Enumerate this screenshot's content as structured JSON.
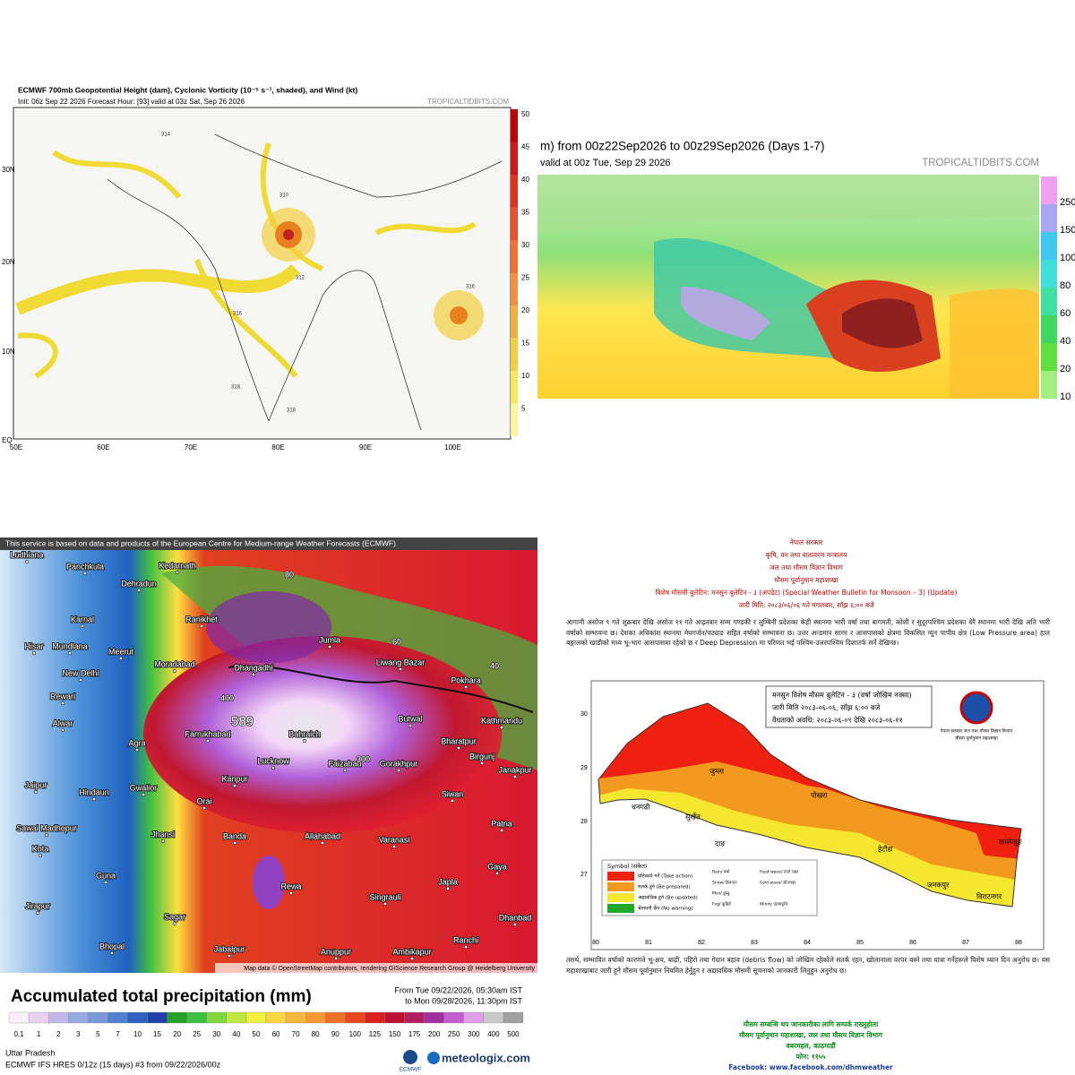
{
  "vorticity_map": {
    "title": "ECMWF 700mb Geopotential Height (dam), Cyclonic Vorticity (10⁻⁵ s⁻¹, shaded), and Wind (kt)",
    "subtitle": "Init: 06z Sep 22 2026   Forecast Hour: [93]   valid at 03z Sat, Sep 26 2026",
    "credit": "TROPICALTIDBITS.COM",
    "colorbar": [
      "50",
      "45",
      "40",
      "35",
      "30",
      "25",
      "20",
      "15",
      "10",
      "5"
    ],
    "lat_labels": [
      "30N",
      "20N",
      "10N",
      "EQ"
    ],
    "lon_labels": [
      "50E",
      "60E",
      "70E",
      "80E",
      "90E",
      "100E"
    ],
    "contour_labels": [
      "314",
      "310",
      "312",
      "316",
      "316",
      "318",
      "318"
    ]
  },
  "precip_map_tt": {
    "title": "m) from 00z22Sep2026 to 00z29Sep2026 (Days 1-7)",
    "subtitle": "valid at 00z Tue, Sep 29 2026",
    "credit": "TROPICALTIDBITS.COM",
    "colorbar": [
      "250",
      "150",
      "100",
      "80",
      "60",
      "40",
      "20",
      "10"
    ]
  },
  "precip_map_meteologix": {
    "header": "This service is based on data and products of the European Centre for Medium-range Weather Forecasts (ECMWF)",
    "cities": [
      "Ludhiana",
      "Panchkula",
      "Kedarnath",
      "Dehradun",
      "Karnal",
      "Ranikhet",
      "Hisar",
      "Mundlana",
      "Meerut",
      "Moradabad",
      "Jumla",
      "New Delhi",
      "Dhangadhi",
      "Liwang Bazar",
      "Pokhara",
      "Kathmandu",
      "Rewari",
      "Butwal",
      "Bahraich",
      "Farrukhabad",
      "Bharatpur",
      "Alwar",
      "Agra",
      "Birgunj",
      "Lucknow",
      "Faizabad",
      "Gorakhpur",
      "Janakpur",
      "Jaipur",
      "Hindaun",
      "Kanpur",
      "Sawai Madhopur",
      "Gwalior",
      "Orai",
      "Siwan",
      "Patna",
      "Jhansi",
      "Banda",
      "Allahabad",
      "Varanasi",
      "Kota",
      "Gaya",
      "Guna",
      "Rewa",
      "Japla",
      "Singrauli",
      "Sagar",
      "Jirapur",
      "Dhanbad",
      "Ranchi",
      "Bhopal",
      "Jabalpur",
      "Anuppur",
      "Ambikapur"
    ],
    "contour_labels": [
      "80",
      "60",
      "40",
      "400",
      "589",
      "300"
    ],
    "attribution": "Map data © OpenStreetMap contributors, rendering GIScience Research Group @ Heidelberg University",
    "legend_title": "Accumulated total precipitation (mm)",
    "period_from": "From Tue 09/22/2026, 05:30am IST",
    "period_to": "to Mon 09/28/2026, 11:30pm IST",
    "scale": [
      "0.1",
      "1",
      "2",
      "3",
      "5",
      "7",
      "10",
      "15",
      "20",
      "25",
      "30",
      "40",
      "50",
      "60",
      "70",
      "80",
      "90",
      "100",
      "125",
      "150",
      "175",
      "200",
      "250",
      "300",
      "400",
      "500"
    ],
    "region": "Uttar Pradesh",
    "model": "ECMWF IFS HRES 0/12z (15 days) #3 from 09/22/2026/00z",
    "ecmwf_logo": "ECMWF",
    "site_logo": "meteologix.com"
  },
  "bulletin": {
    "header": [
      "नेपाल सरकार",
      "कृषि, वन तथा वातावरण मन्त्रालय",
      "जल तथा मौसम विज्ञान विभाग",
      "मौसम पूर्वानुमान महाशाखा",
      "विशेष मौसमी बुलेटिन: मनसुन बुलेटिन - ३ (अपडेट) (Special Weather Bulletin for Monsoon – 3) (Update)",
      "जारी मिति: २०८३/०६/०६ गते मंगलबार, साँझ ६:०० बजे"
    ],
    "intro": "आगामी असोज ९ गते शुक्रबार देखि असोज ११ गते आइतबार सम्म गण्डकी र लुम्बिनी प्रदेशका केही स्थानमा भारी वर्षा तथा बागमती, कोशी र सुदूरपश्चिम प्रदेशका धेरै स्थानमा भारी देखि अति भारी वर्षाको सम्भावना छ। देशका अधिकांश स्थानमा मेघगर्जन/चट्याङ सहित वर्षाको सम्भावना छ। उत्तर अन्डमान सागर र आसपासको क्षेत्रमा विकसित न्यून चापीय क्षेत्र (Low Pressure area) हाल बङ्गालको खाडीको मध्य भू-भाग आसपासमा रहेको छ र Deep Depression मा परिणत भई पश्चिम-उत्तरपश्चिम दिशातर्फ सर्ने देखिन्छ।",
    "map_box": [
      "मनसुन विशेष मौसम बुलेटिन - ३ (वर्षा जोखिम नक्सा)",
      "जारी मिति २०८३-०६-०६, साँझ ६:०० बजे",
      "वैधताको अवधि: २०८३-०६-०९ देखि २०८३-०६-११"
    ],
    "logo_caption": [
      "नेपाल सरकार जल तथा मौसम विज्ञान विभाग",
      "मौसम पूर्वानुमान महाशाखा"
    ],
    "lat_labels": [
      "30",
      "29",
      "28",
      "27"
    ],
    "lon_labels": [
      "80",
      "81",
      "82",
      "83",
      "84",
      "85",
      "86",
      "87",
      "88"
    ],
    "places": [
      "जुम्ला",
      "धनगढी",
      "सुर्खेत",
      "दाङ",
      "पोखरा",
      "हेटौंडा",
      "जनकपुर",
      "विराटनगर",
      "ताप्लेजुङ"
    ],
    "legend_title": "Symbol (संकेत)",
    "legend": [
      "प्रतिकार्य गर्ने (Take action)",
      "सतर्क हुने (Be prepared)",
      "अद्यावधिक हुने (Be updated)",
      "चेतावनी छैन (No warning)"
    ],
    "symbols": [
      "Rain/ वर्षा",
      "Snow/ हिमपात",
      "Mist/ हुस्सु",
      "Fog/ कुहिरो",
      "Heat wave/ तातो लहर",
      "Cold wave/ शीतलहर",
      "Windy (हावाहुरी)"
    ],
    "outro": "तसर्थ, सम्भावित वर्षाको कारणले भू-क्षय, बाढी, पहिरो तथा गेग्रान बहाव (debris flow) को जोखिम रहेकोले सतर्क रहन, खोलानाला वरपर बस्ने तथा यात्रा गर्नेहरूले विशेष ध्यान दिन अनुरोध छ। यस महाशाखाबाट जारी हुने मौसम पूर्वानुमान नियमित हेर्नुहुन र अद्यावधिक मौसमी सूचनाको जानकारी लिनुहुन अनुरोध छ।",
    "footer": [
      "मौसम सम्बन्धि थप जानकारीका लागि सम्पर्क राख्नुहोला",
      "मौसम पूर्वानुमान महाशाखा, जल तथा मौसम विज्ञान विभाग",
      "बबरमहल, काठमाडौं",
      "फोन: ११५५",
      "Facebook: www.facebook.com/dhmweather"
    ]
  }
}
